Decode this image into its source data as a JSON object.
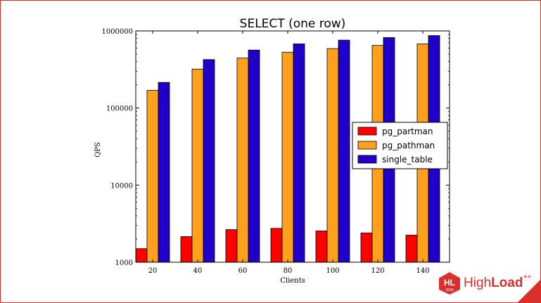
{
  "chart_data": {
    "type": "bar",
    "title": "SELECT (one row)",
    "xlabel": "Clients",
    "ylabel": "QPS",
    "yscale": "log",
    "ylim": [
      1000,
      1000000
    ],
    "yticks": [
      "1000",
      "10000",
      "100000",
      "1000000"
    ],
    "categories": [
      "20",
      "40",
      "60",
      "80",
      "100",
      "120",
      "140"
    ],
    "series": [
      {
        "name": "pg_partman",
        "color": "#ff0000",
        "values": [
          1500,
          2150,
          2650,
          2750,
          2550,
          2400,
          2250
        ]
      },
      {
        "name": "pg_pathman",
        "color": "#ffa01e",
        "values": [
          170000,
          320000,
          445000,
          530000,
          590000,
          650000,
          680000
        ]
      },
      {
        "name": "single_table",
        "color": "#1f00c8",
        "values": [
          215000,
          425000,
          565000,
          680000,
          760000,
          820000,
          870000
        ]
      }
    ],
    "legend": "right",
    "grid": false
  },
  "branding": {
    "logo_abbrev": "HL",
    "logo_year": "2016",
    "logo_word_1": "High",
    "logo_word_2": "Load",
    "logo_sup": "++",
    "accent": "#d9302b"
  }
}
